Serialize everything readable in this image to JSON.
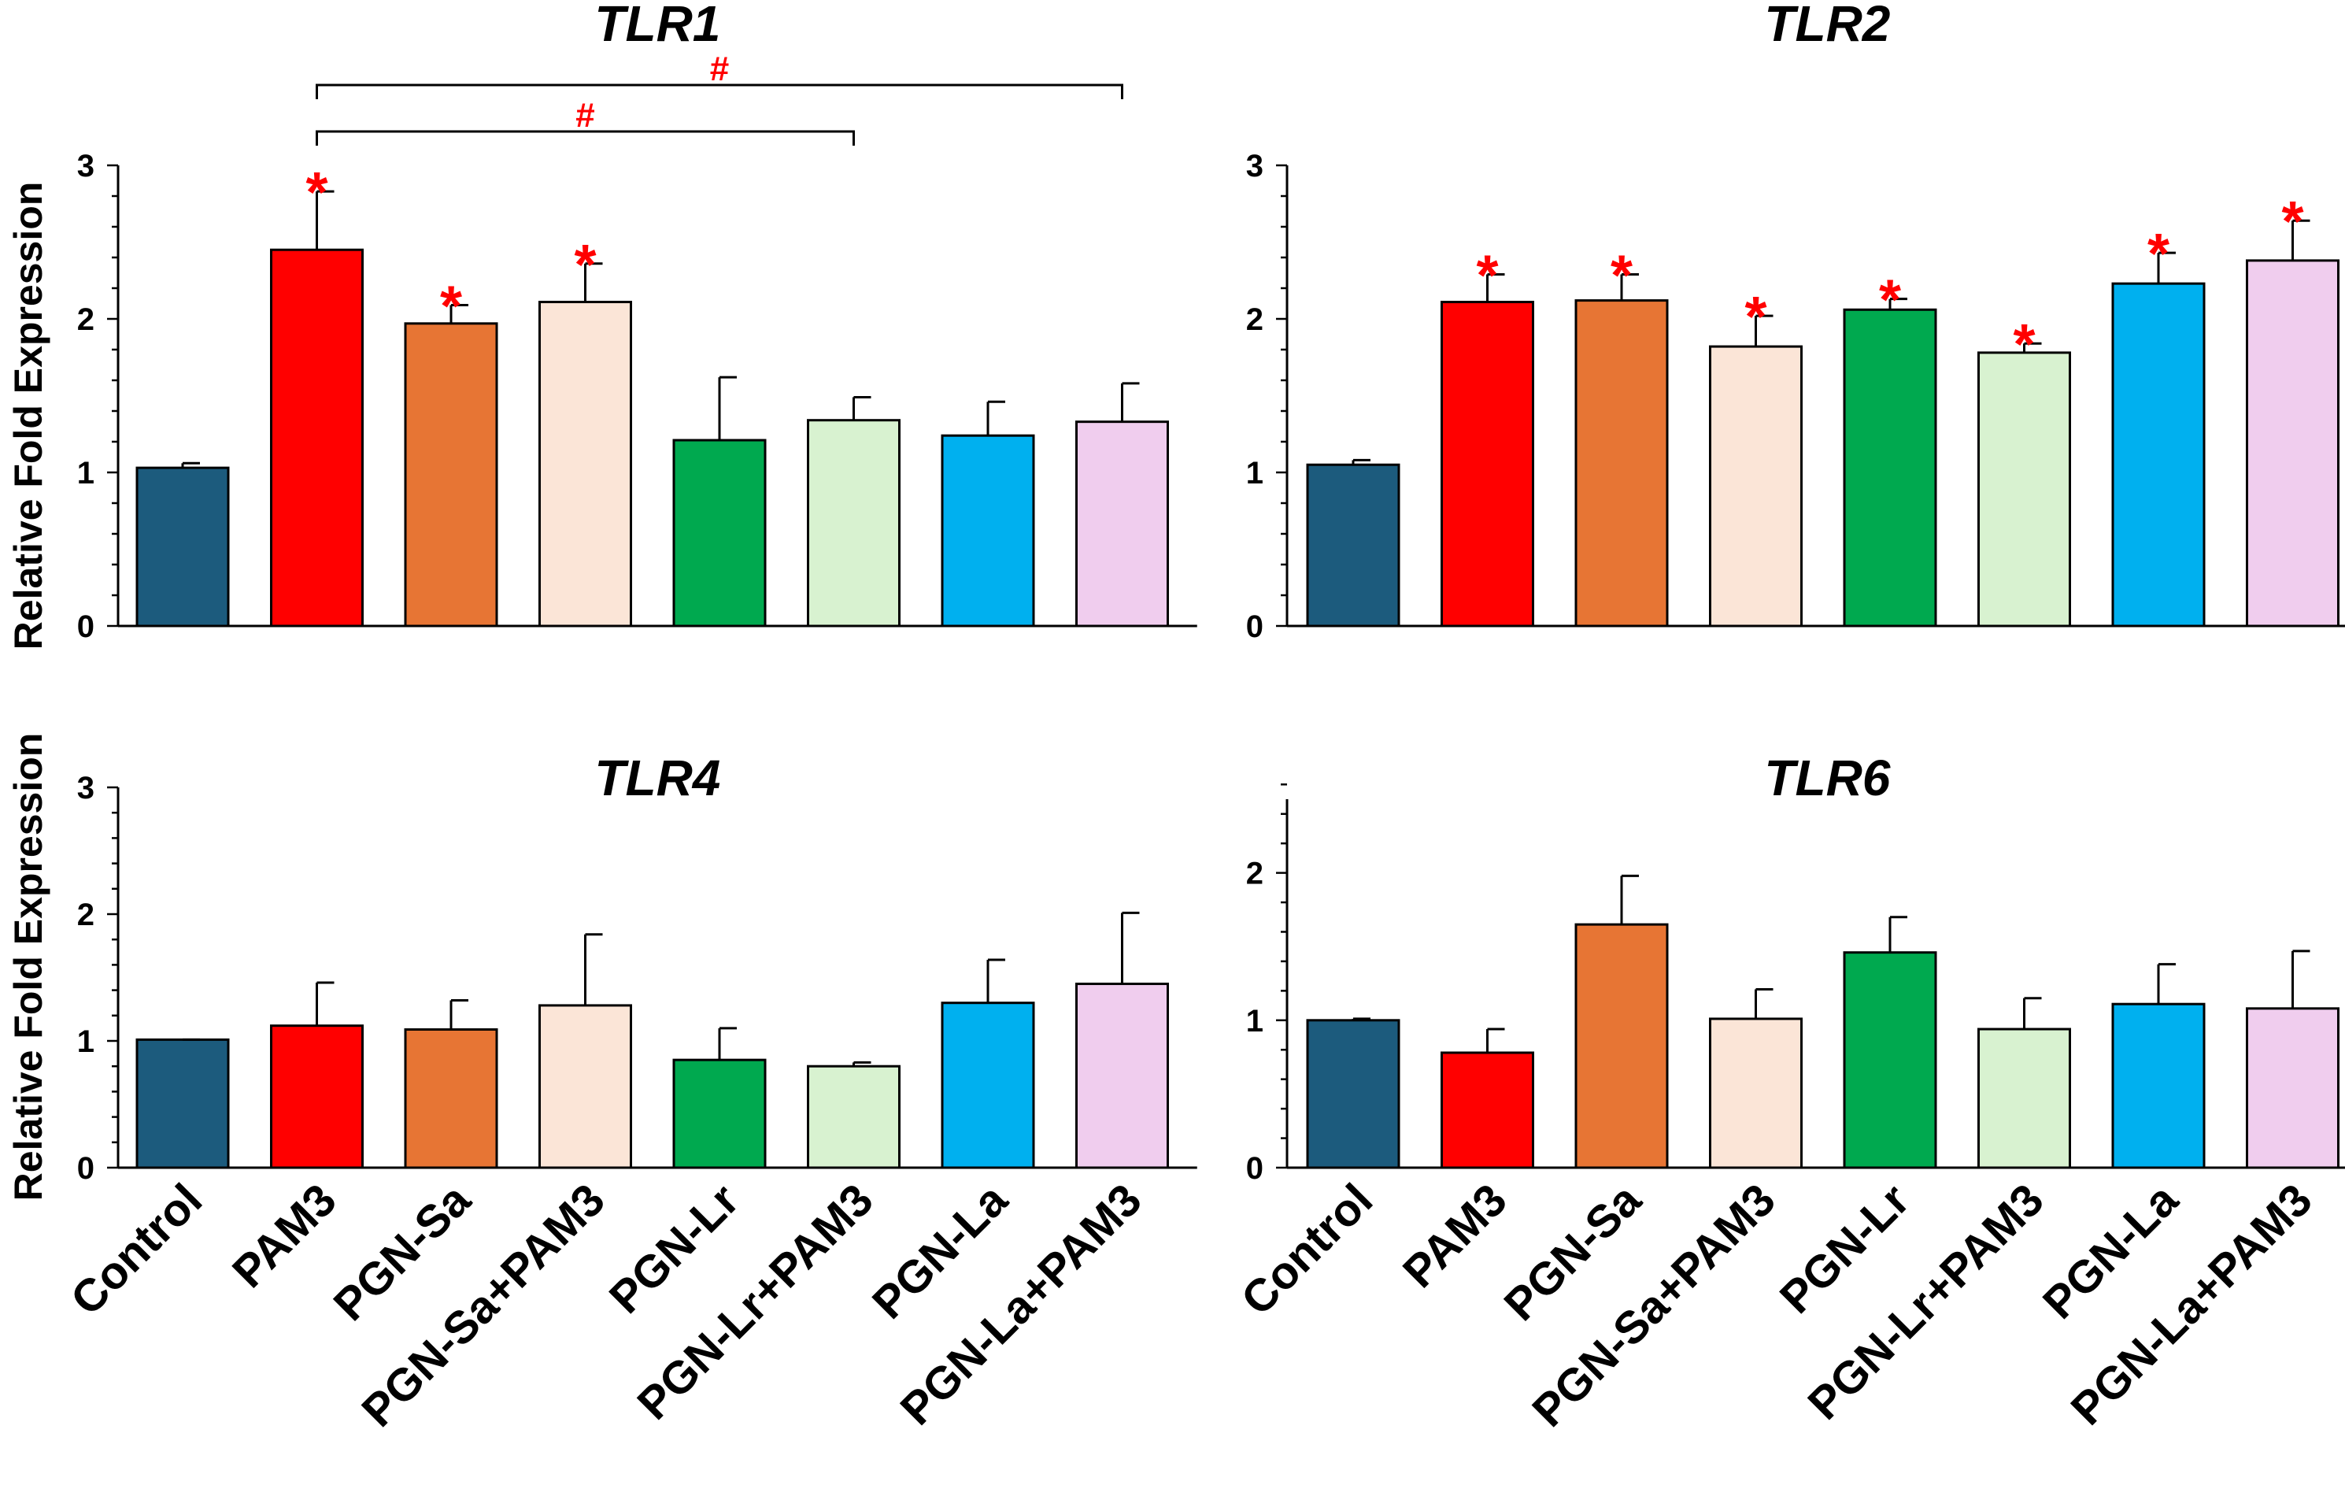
{
  "figure": {
    "ylabel": "Relative Fold Expression",
    "colors": [
      "#1c5b7d",
      "#ff0000",
      "#e77534",
      "#fbe5d7",
      "#00a94f",
      "#d8f2d0",
      "#00b0ef",
      "#f0cdee"
    ]
  },
  "chart_data": [
    {
      "type": "bar",
      "title": "TLR1",
      "ylabel": "Relative Fold Expression",
      "ylim": [
        0,
        3
      ],
      "yticks": [
        "0",
        "1",
        "2",
        "3"
      ],
      "categories": [
        "Control",
        "PAM3",
        "PGN-Sa",
        "PGN-Sa+PAM3",
        "PGN-Lr",
        "PGN-Lr+PAM3",
        "PGN-La",
        "PGN-La+PAM3"
      ],
      "values": [
        1.03,
        2.45,
        1.97,
        2.11,
        1.21,
        1.34,
        1.24,
        1.33
      ],
      "errors": [
        0.03,
        0.38,
        0.12,
        0.25,
        0.41,
        0.15,
        0.22,
        0.25
      ],
      "significant": [
        false,
        true,
        true,
        true,
        false,
        false,
        false,
        false
      ],
      "star_label": "*",
      "brackets": [
        {
          "from": 1,
          "to": 7,
          "label": "#"
        },
        {
          "from": 1,
          "to": 5,
          "label": "#"
        }
      ]
    },
    {
      "type": "bar",
      "title": "TLR2",
      "ylabel": "",
      "ylim": [
        0,
        3
      ],
      "yticks": [
        "0",
        "1",
        "2",
        "3"
      ],
      "categories": [
        "Control",
        "PAM3",
        "PGN-Sa",
        "PGN-Sa+PAM3",
        "PGN-Lr",
        "PGN-Lr+PAM3",
        "PGN-La",
        "PGN-La+PAM3"
      ],
      "values": [
        1.05,
        2.11,
        2.12,
        1.82,
        2.06,
        1.78,
        2.23,
        2.38
      ],
      "errors": [
        0.03,
        0.18,
        0.17,
        0.2,
        0.07,
        0.06,
        0.2,
        0.26
      ],
      "significant": [
        false,
        true,
        true,
        true,
        true,
        true,
        true,
        true
      ],
      "star_label": "*",
      "brackets": []
    },
    {
      "type": "bar",
      "title": "TLR4",
      "ylabel": "Relative Fold Expression",
      "ylim": [
        0,
        3
      ],
      "yticks": [
        "0",
        "1",
        "2",
        "3"
      ],
      "categories": [
        "Control",
        "PAM3",
        "PGN-Sa",
        "PGN-Sa+PAM3",
        "PGN-Lr",
        "PGN-Lr+PAM3",
        "PGN-La",
        "PGN-La+PAM3"
      ],
      "values": [
        1.01,
        1.12,
        1.09,
        1.28,
        0.85,
        0.8,
        1.3,
        1.45
      ],
      "errors": [
        0.0,
        0.34,
        0.23,
        0.56,
        0.25,
        0.03,
        0.34,
        0.56
      ],
      "significant": [
        false,
        false,
        false,
        false,
        false,
        false,
        false,
        false
      ],
      "star_label": "*",
      "brackets": []
    },
    {
      "type": "bar",
      "title": "TLR6",
      "ylabel": "",
      "ylim": [
        0,
        2.5
      ],
      "yticks": [
        "0",
        "1",
        "2"
      ],
      "categories": [
        "Control",
        "PAM3",
        "PGN-Sa",
        "PGN-Sa+PAM3",
        "PGN-Lr",
        "PGN-Lr+PAM3",
        "PGN-La",
        "PGN-La+PAM3"
      ],
      "values": [
        1.0,
        0.78,
        1.65,
        1.01,
        1.46,
        0.94,
        1.11,
        1.08
      ],
      "errors": [
        0.01,
        0.16,
        0.33,
        0.2,
        0.24,
        0.21,
        0.27,
        0.39
      ],
      "significant": [
        false,
        false,
        false,
        false,
        false,
        false,
        false,
        false
      ],
      "star_label": "*",
      "brackets": []
    }
  ]
}
